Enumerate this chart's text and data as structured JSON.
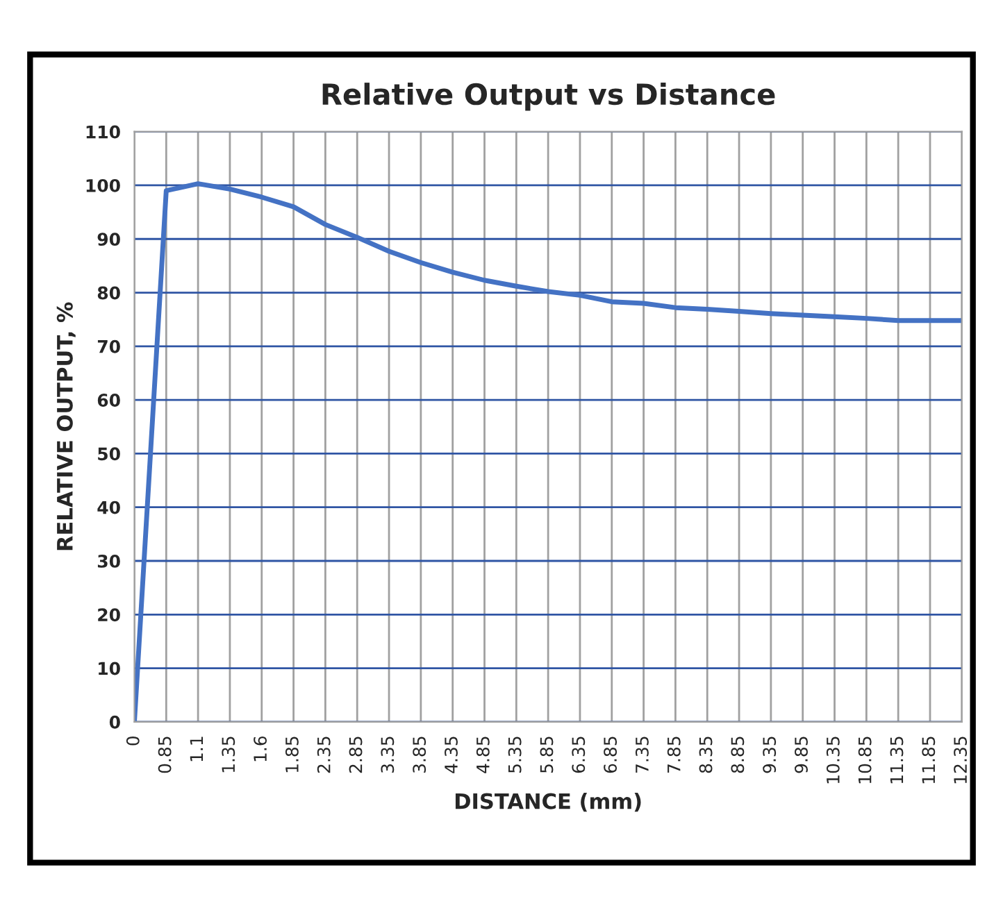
{
  "chart_data": {
    "type": "line",
    "title": "Relative Output vs Distance",
    "xlabel": "DISTANCE (mm)",
    "ylabel": "RELATIVE OUTPUT, %",
    "categories": [
      "0",
      "0.85",
      "1.1",
      "1.35",
      "1.6",
      "1.85",
      "2.35",
      "2.85",
      "3.35",
      "3.85",
      "4.35",
      "4.85",
      "5.35",
      "5.85",
      "6.35",
      "6.85",
      "7.35",
      "7.85",
      "8.35",
      "8.85",
      "9.35",
      "9.85",
      "10.35",
      "10.85",
      "11.35",
      "11.85",
      "12.35"
    ],
    "series": [
      {
        "color": "#4472c4",
        "values": [
          0,
          99,
          100.3,
          99.3,
          97.8,
          96,
          92.7,
          90.3,
          87.7,
          85.6,
          83.8,
          82.3,
          81.2,
          80.2,
          79.5,
          78.3,
          78,
          77.2,
          76.9,
          76.5,
          76.1,
          75.8,
          75.5,
          75.2,
          74.8,
          74.8,
          74.8
        ]
      }
    ],
    "ylim": [
      0,
      110
    ],
    "yticks": [
      0,
      10,
      20,
      30,
      40,
      50,
      60,
      70,
      80,
      90,
      100,
      110
    ],
    "grid": true,
    "marker": "none",
    "line_style": "solid"
  }
}
